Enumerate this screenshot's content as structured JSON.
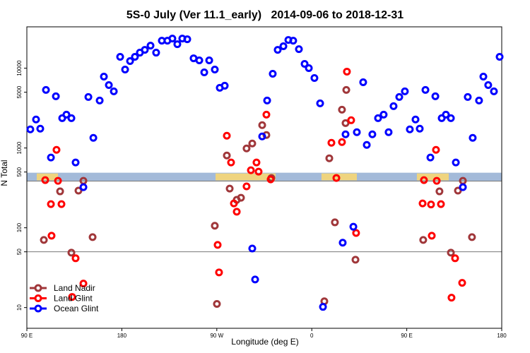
{
  "chart_data": {
    "type": "scatter",
    "title": "5S-0 July (Ver 11.1_early)   2014-09-06 to 2018-12-31",
    "x_label": "Longitude (deg E)",
    "y_label": "N Total",
    "log_y": true,
    "xlim": [
      90,
      540
    ],
    "ylim": [
      5.5,
      33000
    ],
    "xticks": [
      {
        "value": 90,
        "label": "90 E"
      },
      {
        "value": 180,
        "label": "180"
      },
      {
        "value": 270,
        "label": "90 W"
      },
      {
        "value": 360,
        "label": "0"
      },
      {
        "value": 450,
        "label": "90 E"
      },
      {
        "value": 540,
        "label": "180"
      }
    ],
    "yticks": [
      10,
      50,
      100,
      500,
      1000,
      5000,
      10000
    ],
    "hlines": [
      50
    ],
    "hline_color": "#777777",
    "band": [
      385,
      490
    ],
    "band_color": "#a3bad9",
    "land_regions": [
      [
        99.4,
        119.5
      ],
      [
        268.8,
        325.7
      ],
      [
        369.2,
        402.7
      ],
      [
        459.6,
        489.8
      ]
    ],
    "land_color": "#f7d774",
    "legend_position": "lower left",
    "series": [
      {
        "name": "Land Nadir",
        "color": "#a0373a",
        "x": [
          106.1,
          121.5,
          132.2,
          138.9,
          143.6,
          152.3,
          270.1,
          268.1,
          279.5,
          282.2,
          288.9,
          292.9,
          298.2,
          303.6,
          313.0,
          317.0,
          321.7,
          371.9,
          376.6,
          381.9,
          388.6,
          392.0,
          392.7,
          401.4,
          465.6,
          481.0,
          491.8,
          498.5,
          503.2,
          511.8
        ],
        "values": [
          70.4,
          286,
          48.8,
          292,
          388,
          76.3,
          11.1,
          106,
          806,
          310,
          224,
          238,
          988,
          1138,
          1932,
          1453,
          421,
          12,
          743,
          117,
          3020,
          2052,
          5340,
          39.8,
          70.4,
          286,
          48.8,
          292,
          388,
          76.3
        ]
      },
      {
        "name": "Land Glint",
        "color": "#ff0000",
        "x": [
          107.4,
          112.8,
          118.1,
          119.5,
          113.4,
          122.8,
          132.9,
          136.2,
          143.6,
          270.8,
          272.1,
          279.5,
          283.5,
          286.2,
          288.9,
          298.2,
          302.3,
          307.6,
          309.6,
          317.0,
          321.0,
          378.6,
          383.3,
          388.6,
          393.3,
          397.3,
          402.0,
          465.0,
          466.3,
          473.0,
          473.7,
          477.7,
          478.4,
          482.4,
          492.4,
          495.8,
          502.5
        ],
        "values": [
          396,
          198,
          948,
          388,
          79.5,
          198,
          13.6,
          41.5,
          20,
          61,
          27.6,
          1425,
          658,
          202,
          159,
          330,
          526,
          658,
          505,
          2620,
          404,
          1162,
          421,
          1186,
          9060,
          2228,
          86,
          202,
          396,
          196,
          79.5,
          948,
          388,
          198,
          13.3,
          41.5,
          20.4
        ]
      },
      {
        "name": "Ocean Glint",
        "color": "#0000ff",
        "x": [
          93.3,
          98.7,
          102.7,
          108.1,
          112.8,
          117.5,
          123.5,
          127.5,
          132.2,
          136.2,
          143.6,
          148.3,
          153.0,
          159.0,
          163.0,
          167.7,
          172.4,
          178.4,
          183.1,
          187.8,
          192.4,
          197.1,
          201.8,
          207.2,
          212.5,
          217.9,
          223.2,
          227.9,
          232.6,
          237.3,
          242.0,
          248.0,
          253.4,
          258.1,
          262.8,
          268.1,
          272.8,
          277.5,
          303.6,
          306.3,
          313.0,
          317.7,
          323.0,
          327.7,
          333.1,
          337.8,
          342.4,
          347.8,
          353.2,
          357.2,
          362.5,
          367.9,
          370.6,
          389.3,
          392.0,
          399.4,
          402.7,
          408.7,
          412.1,
          417.4,
          422.8,
          428.1,
          432.8,
          437.5,
          442.9,
          448.2,
          452.9,
          458.3,
          462.3,
          467.7,
          472.4,
          477.1,
          483.1,
          487.1,
          491.8,
          496.5,
          503.2,
          507.8,
          512.5,
          518.5,
          522.6,
          527.2,
          532.6,
          538.0
        ],
        "values": [
          1710,
          2275,
          1745,
          5340,
          759,
          4445,
          2366,
          2620,
          2366,
          658,
          323,
          4355,
          1340,
          3935,
          7850,
          6150,
          5125,
          13870,
          9620,
          12280,
          13870,
          15670,
          16990,
          19190,
          15670,
          22130,
          22130,
          23540,
          20000,
          23540,
          23070,
          13310,
          12530,
          8870,
          12530,
          9620,
          5675,
          6030,
          55,
          22.5,
          1395,
          3935,
          8510,
          16990,
          18830,
          22590,
          22130,
          17340,
          11320,
          10020,
          7540,
          3630,
          10.2,
          65,
          1483,
          103,
          1577,
          6670,
          1094,
          1483,
          2366,
          2620,
          1577,
          3345,
          4355,
          5125,
          1710,
          2275,
          1745,
          5340,
          759,
          4445,
          2366,
          2620,
          2366,
          658,
          323,
          4355,
          1340,
          3935,
          7850,
          6150,
          5125,
          13870
        ]
      }
    ]
  }
}
